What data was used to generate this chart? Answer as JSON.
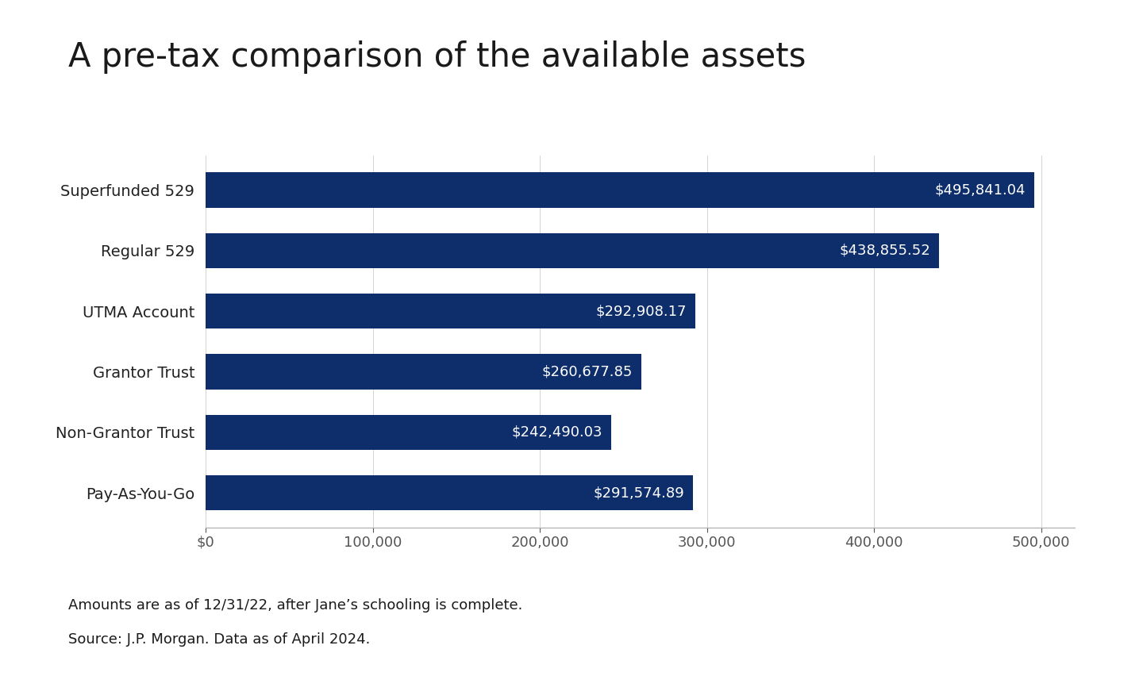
{
  "title": "A pre-tax comparison of the available assets",
  "categories": [
    "Pay-As-You-Go",
    "Non-Grantor Trust",
    "Grantor Trust",
    "UTMA Account",
    "Regular 529",
    "Superfunded 529"
  ],
  "values": [
    291574.89,
    242490.03,
    260677.85,
    292908.17,
    438855.52,
    495841.04
  ],
  "labels": [
    "$291,574.89",
    "$242,490.03",
    "$260,677.85",
    "$292,908.17",
    "$438,855.52",
    "$495,841.04"
  ],
  "bar_color": "#0d2d6b",
  "background_color": "#ffffff",
  "title_fontsize": 30,
  "label_fontsize": 13,
  "tick_fontsize": 13,
  "footnote1": "Amounts are as of 12/31/22, after Jane’s schooling is complete.",
  "footnote2": "Source: J.P. Morgan. Data as of April 2024.",
  "xlim": [
    0,
    520000
  ],
  "xticks": [
    0,
    100000,
    200000,
    300000,
    400000,
    500000
  ],
  "xticklabels": [
    "$0",
    "100,000",
    "200,000",
    "300,000",
    "400,000",
    "500,000"
  ]
}
